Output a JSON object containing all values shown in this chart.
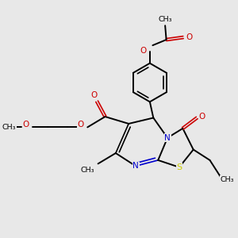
{
  "bg_color": "#e8e8e8",
  "bond_color": "#000000",
  "N_color": "#0000cc",
  "O_color": "#cc0000",
  "S_color": "#cccc00",
  "figsize": [
    3.0,
    3.0
  ],
  "dpi": 100,
  "xlim": [
    0,
    10
  ],
  "ylim": [
    0,
    10
  ]
}
